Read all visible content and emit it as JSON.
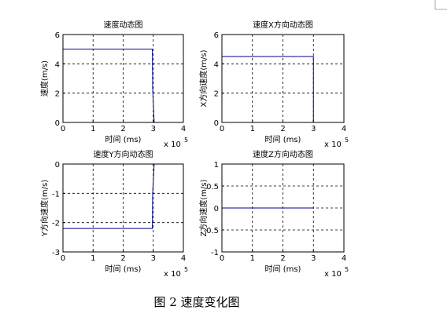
{
  "chart_data": [
    {
      "type": "line",
      "title": "速度动态图",
      "x_label": "时间 (ms)",
      "y_label": "速度(m/s)",
      "x_scale_label": "x 10",
      "x_scale_exponent": 5,
      "x": [
        0,
        2.97,
        2.98,
        3.03
      ],
      "series": [
        {
          "color": "#00008b",
          "values": [
            5,
            5,
            2.3,
            0
          ]
        }
      ],
      "xlim": [
        0,
        4
      ],
      "xticks": [
        0,
        1,
        2,
        3,
        4
      ],
      "ylim": [
        0,
        6
      ],
      "yticks": [
        0,
        2,
        4,
        6
      ],
      "grid": true
    },
    {
      "type": "line",
      "title": "速度X方向动态图",
      "x_label": "时间 (ms)",
      "y_label": "X方向速度(m/s)",
      "x_scale_label": "x 10",
      "x_scale_exponent": 5,
      "x": [
        0,
        3.0,
        3.0
      ],
      "series": [
        {
          "color": "#00008b",
          "values": [
            4.5,
            4.5,
            0
          ]
        }
      ],
      "xlim": [
        0,
        4
      ],
      "xticks": [
        0,
        1,
        2,
        3,
        4
      ],
      "ylim": [
        0,
        6
      ],
      "yticks": [
        0,
        2,
        4,
        6
      ],
      "grid": true
    },
    {
      "type": "line",
      "title": "速度Y方向动态图",
      "x_label": "时间 (ms)",
      "y_label": "Y方向速度(m/s)",
      "x_scale_label": "x 10",
      "x_scale_exponent": 5,
      "x": [
        0,
        2.97,
        2.98,
        3.03
      ],
      "series": [
        {
          "color": "#00008b",
          "values": [
            -2.2,
            -2.2,
            -1.0,
            0
          ]
        }
      ],
      "xlim": [
        0,
        4
      ],
      "xticks": [
        0,
        1,
        2,
        3,
        4
      ],
      "ylim": [
        -3,
        0
      ],
      "yticks": [
        -3,
        -2,
        -1,
        0
      ],
      "grid": true
    },
    {
      "type": "line",
      "title": "速度Z方向动态图",
      "x_label": "时间 (ms)",
      "y_label": "Z方向速度(m/s)",
      "x_scale_label": "x 10",
      "x_scale_exponent": 5,
      "x": [
        0,
        3.0
      ],
      "series": [
        {
          "color": "#00008b",
          "values": [
            0,
            0
          ]
        }
      ],
      "xlim": [
        0,
        4
      ],
      "xticks": [
        0,
        1,
        2,
        3,
        4
      ],
      "ylim": [
        -1,
        1
      ],
      "yticks": [
        -1,
        -0.5,
        0,
        0.5,
        1
      ],
      "grid": true
    }
  ],
  "caption": "图 2 速度变化图"
}
